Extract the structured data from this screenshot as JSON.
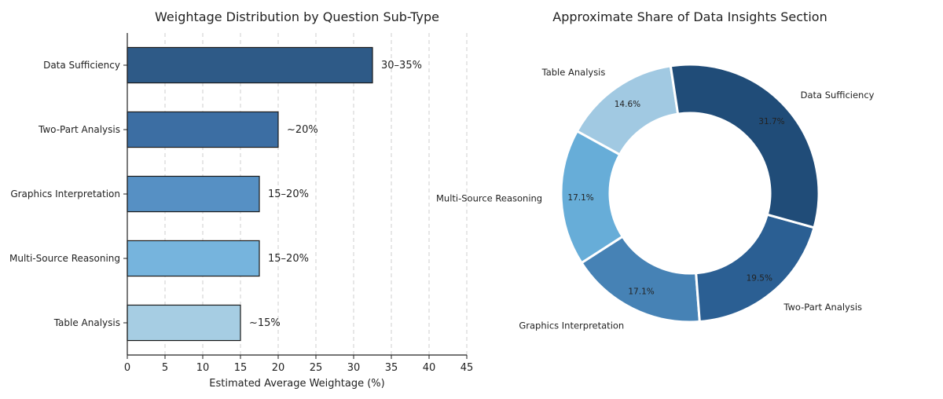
{
  "chart_data": [
    {
      "type": "bar",
      "orientation": "horizontal",
      "title": "Weightage Distribution by Question Sub-Type",
      "xlabel": "Estimated Average Weightage (%)",
      "ylabel": "",
      "xlim": [
        0,
        45
      ],
      "xticks": [
        0,
        5,
        10,
        15,
        20,
        25,
        30,
        35,
        40,
        45
      ],
      "grid": "vertical dashed",
      "categories": [
        "Data Sufficiency",
        "Two-Part Analysis",
        "Graphics Interpretation",
        "Multi-Source Reasoning",
        "Table Analysis"
      ],
      "values": [
        32.5,
        20,
        17.5,
        17.5,
        15
      ],
      "data_labels": [
        "30–35%",
        "~20%",
        "15–20%",
        "15–20%",
        "~15%"
      ],
      "colors": [
        "#2e5a87",
        "#3c6ea3",
        "#5690c4",
        "#76b4dd",
        "#a6cde3"
      ]
    },
    {
      "type": "pie",
      "style": "donut",
      "title": "Approximate Share of Data Insights Section",
      "labels": [
        "Table Analysis",
        "Multi-Source Reasoning",
        "Graphics Interpretation",
        "Two-Part Analysis",
        "Data Sufficiency"
      ],
      "values": [
        14.6,
        17.1,
        17.1,
        19.5,
        31.7
      ],
      "pct_labels": [
        "14.6%",
        "17.1%",
        "17.1%",
        "19.5%",
        "31.7%"
      ],
      "colors": [
        "#a1c9e2",
        "#67add8",
        "#4682b5",
        "#2b5f93",
        "#204c78"
      ]
    }
  ]
}
